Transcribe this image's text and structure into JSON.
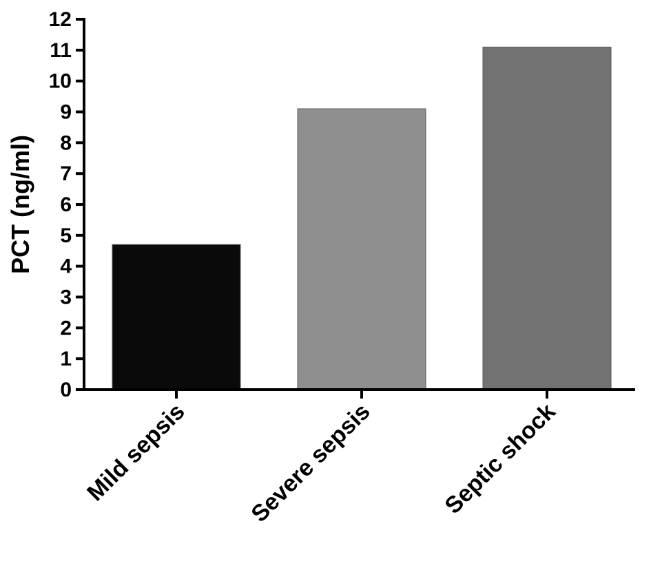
{
  "chart_data": {
    "type": "bar",
    "categories": [
      "Mild sepsis",
      "Severe sepsis",
      "Septic shock"
    ],
    "values": [
      4.7,
      9.1,
      11.1
    ],
    "colors": [
      "#0a0a0a",
      "#8f8f8f",
      "#727272"
    ],
    "title": "",
    "xlabel": "",
    "ylabel": "PCT (ng/ml)",
    "ylim": [
      0,
      12
    ],
    "yticks": [
      0,
      1,
      2,
      3,
      4,
      5,
      6,
      7,
      8,
      9,
      10,
      11,
      12
    ],
    "grid": false,
    "legend": false
  }
}
